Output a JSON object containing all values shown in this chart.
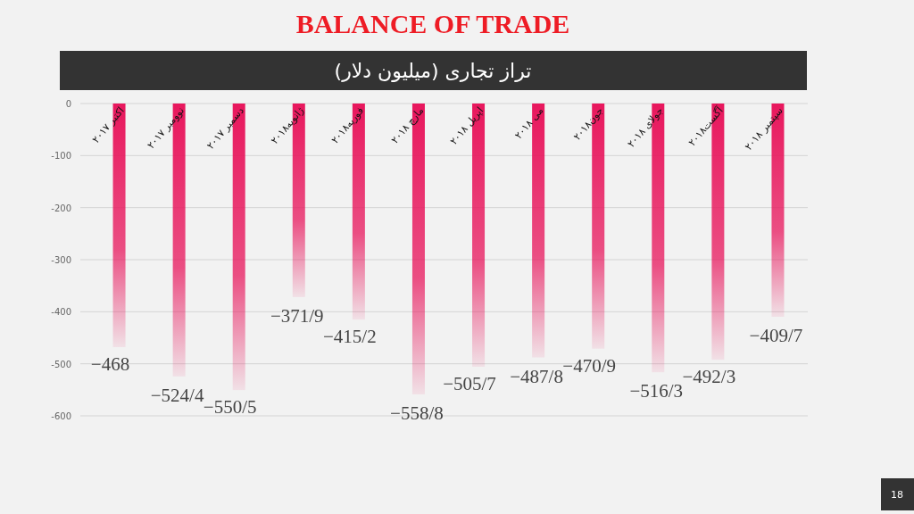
{
  "chart_data": {
    "type": "bar",
    "title": "BALANCE OF TRADE",
    "subtitle": "تراز تجاری (میلیون دلار)",
    "categories": [
      "اکتبر ۲۰۱۷",
      "نوومبر ۲۰۱۷",
      "دسمبر ۲۰۱۷",
      "ژانویه۲۰۱۸",
      "فوریه۲۰۱۸",
      "مارچ ۲۰۱۸",
      "اپریل ۲۰۱۸",
      "می ۲۰۱۸",
      "جون۲۰۱۸",
      "جولای ۲۰۱۸",
      "آگست۲۰۱۸",
      "سپتمبر ۲۰۱۸"
    ],
    "values": [
      -468,
      -524.4,
      -550.5,
      -371.9,
      -415.2,
      -558.8,
      -505.7,
      -487.8,
      -470.9,
      -516.3,
      -492.3,
      -409.7
    ],
    "value_labels": [
      "−468",
      "−524/4",
      "−550/5",
      "−371/9",
      "−415/2",
      "−558/8",
      "−505/7",
      "−487/8",
      "−470/9",
      "−516/3",
      "−492/3",
      "−409/7"
    ],
    "color": "#e8175d",
    "ylim": [
      -600,
      0
    ],
    "yticks": [
      0,
      -100,
      -200,
      -300,
      -400,
      -500,
      -600
    ],
    "grid": "y",
    "annotations": [
      "18"
    ]
  }
}
